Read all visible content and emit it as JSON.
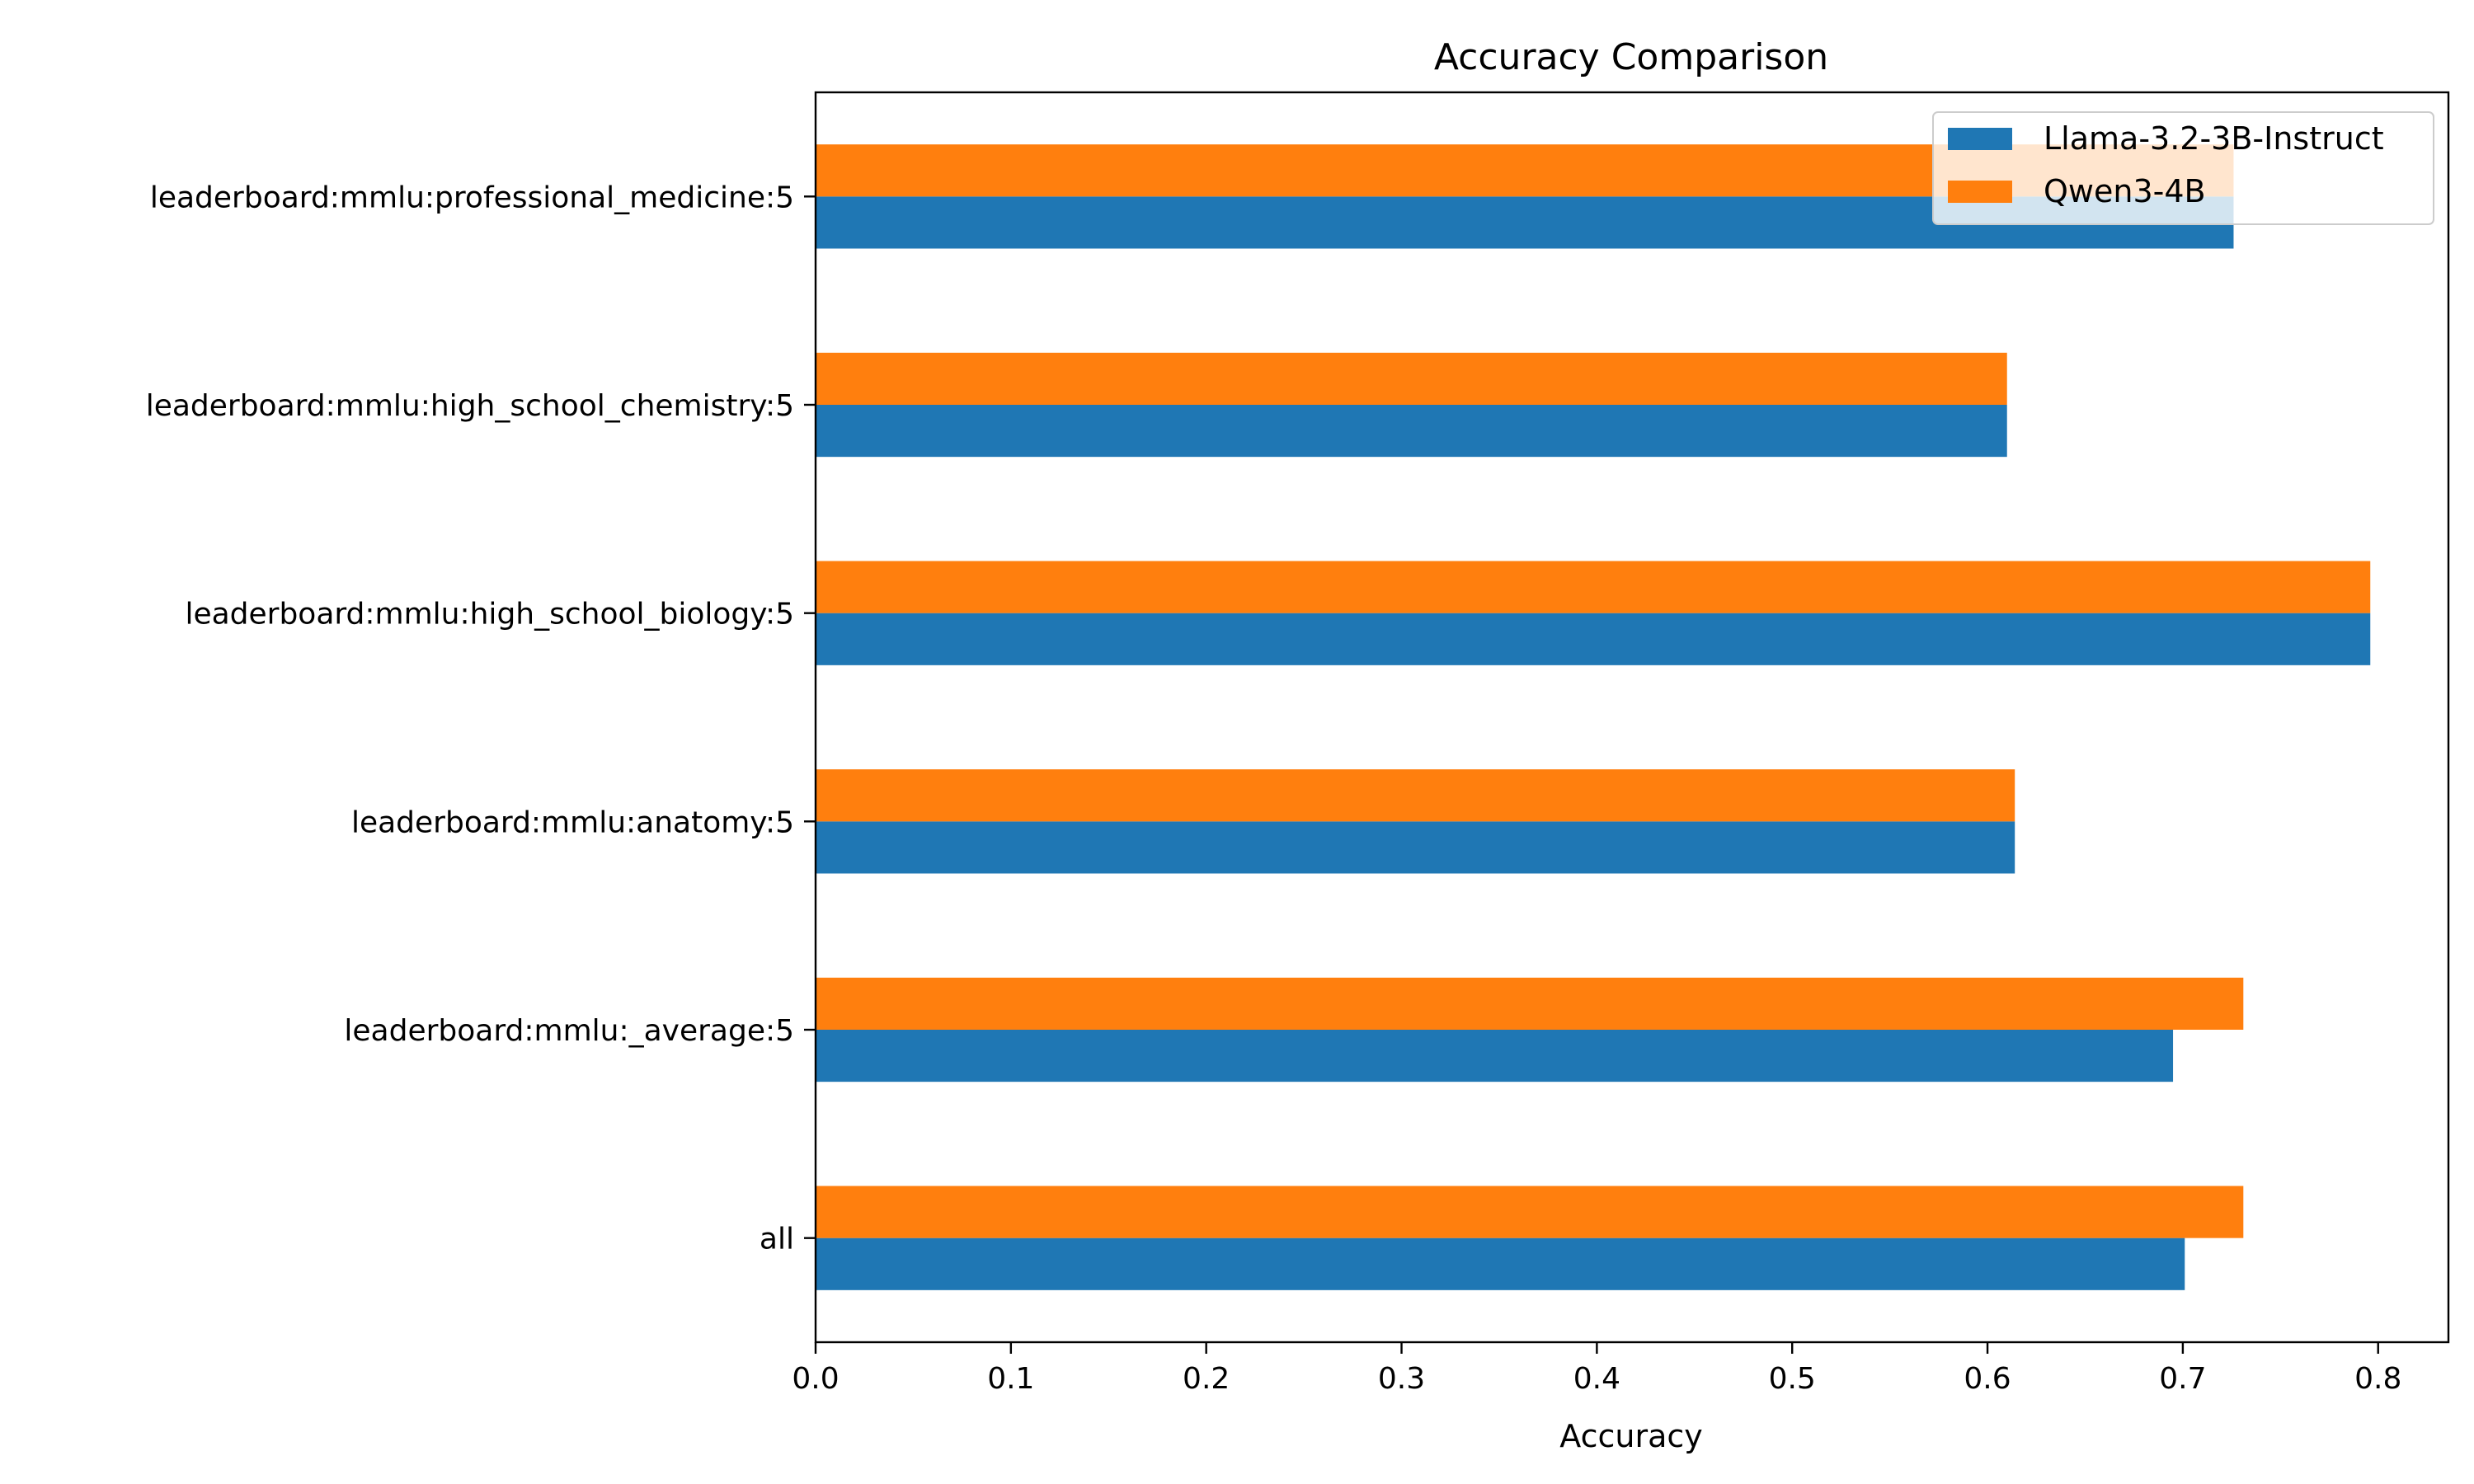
{
  "chart_data": {
    "type": "bar",
    "orientation": "horizontal",
    "title": "Accuracy Comparison",
    "xlabel": "Accuracy",
    "ylabel": "",
    "xlim": [
      0,
      0.836
    ],
    "xticks": [
      0.0,
      0.1,
      0.2,
      0.3,
      0.4,
      0.5,
      0.6,
      0.7,
      0.8
    ],
    "xtick_labels": [
      "0.0",
      "0.1",
      "0.2",
      "0.3",
      "0.4",
      "0.5",
      "0.6",
      "0.7",
      "0.8"
    ],
    "categories": [
      "all",
      "leaderboard:mmlu:_average:5",
      "leaderboard:mmlu:anatomy:5",
      "leaderboard:mmlu:high_school_biology:5",
      "leaderboard:mmlu:high_school_chemistry:5",
      "leaderboard:mmlu:professional_medicine:5"
    ],
    "series": [
      {
        "name": "Llama-3.2-3B-Instruct",
        "color": "#1f77b4",
        "values": [
          0.701,
          0.695,
          0.614,
          0.796,
          0.61,
          0.726
        ]
      },
      {
        "name": "Qwen3-4B",
        "color": "#ff7f0e",
        "values": [
          0.731,
          0.731,
          0.614,
          0.796,
          0.61,
          0.726
        ]
      }
    ],
    "grid": false,
    "legend_position": "top-right"
  }
}
